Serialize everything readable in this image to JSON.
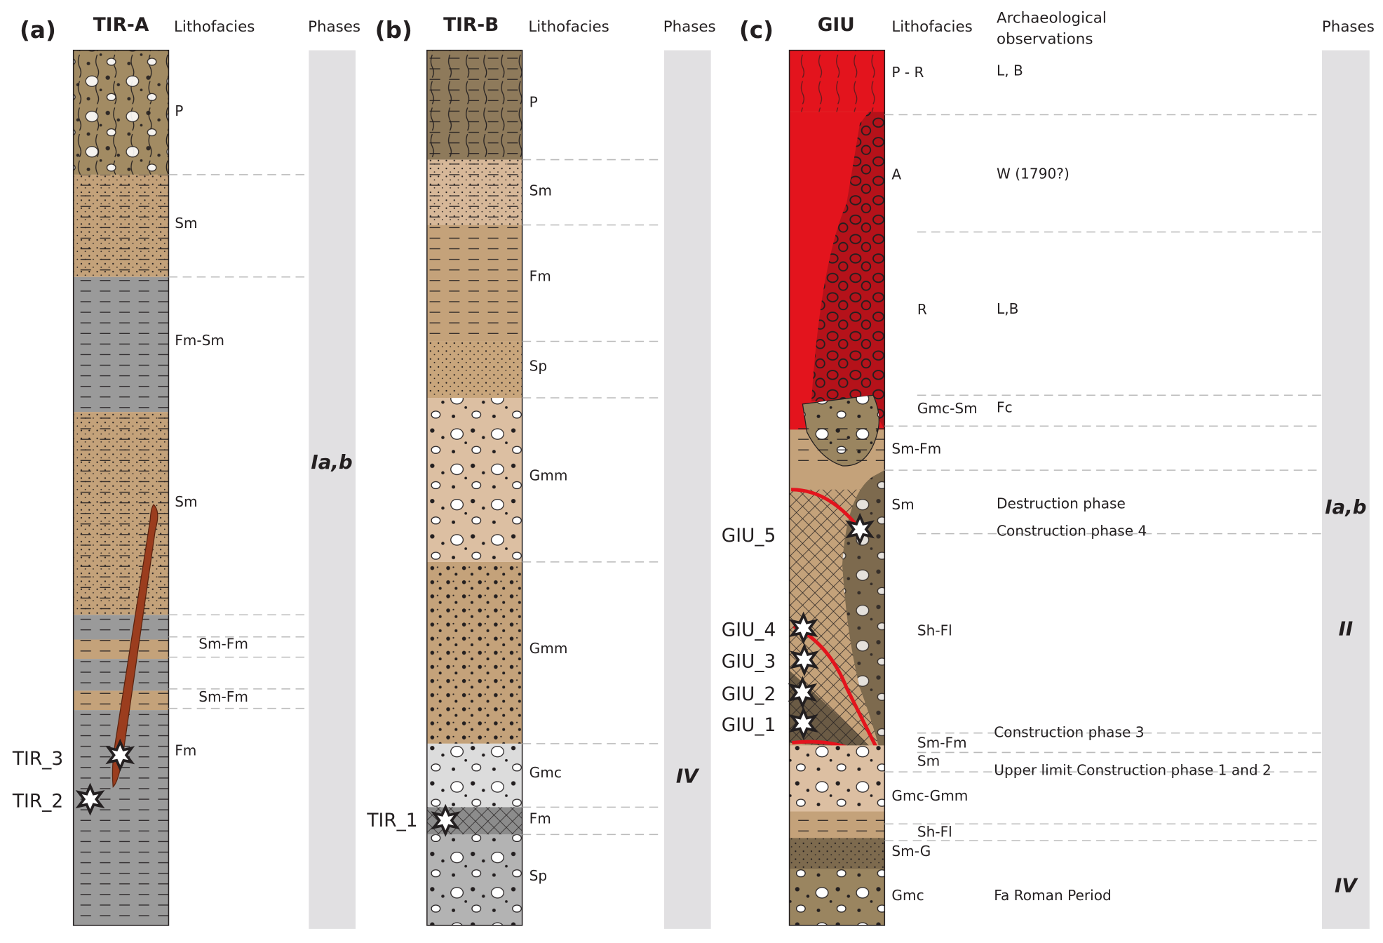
{
  "panels": [
    {
      "label": "(a)",
      "title": "TIR-A",
      "lithofacies_header": "Lithofacies",
      "phases_header": "Phases",
      "layers": [
        "P",
        "Sm",
        "Fm-Sm",
        "Sm",
        "Sm-Fm",
        "Sm-Fm",
        "Fm"
      ],
      "samples": [
        "TIR_3",
        "TIR_2"
      ],
      "phases": [
        "Ia,b"
      ]
    },
    {
      "label": "(b)",
      "title": "TIR-B",
      "lithofacies_header": "Lithofacies",
      "phases_header": "Phases",
      "layers": [
        "P",
        "Sm",
        "Fm",
        "Sp",
        "Gmm",
        "Gmm",
        "Gmc",
        "Fm",
        "Sp"
      ],
      "samples": [
        "TIR_1"
      ],
      "phases": [
        "IV"
      ]
    },
    {
      "label": "(c)",
      "title": "GIU",
      "lithofacies_header": "Lithofacies",
      "observations_header": [
        "Archaeological",
        "observations"
      ],
      "phases_header": "Phases",
      "layers": [
        "P - R",
        "A",
        "R",
        "Gmc-Sm",
        "Sm-Fm",
        "Sm",
        "Sh-Fl",
        "Sm-Fm",
        "Sm",
        "Gmc-Gmm",
        "Sh-Fl",
        "Sm-G",
        "Gmc"
      ],
      "observations": [
        "L, B",
        "W (1790?)",
        "L,B",
        "Fc",
        "Destruction phase",
        "Construction phase 4",
        "Construction phase 3",
        "Upper limit Construction phase 1 and 2",
        "Fa Roman Period"
      ],
      "samples": [
        "GIU_5",
        "GIU_4",
        "GIU_3",
        "GIU_2",
        "GIU_1"
      ],
      "phases": [
        "Ia,b",
        "II",
        "IV"
      ]
    }
  ]
}
